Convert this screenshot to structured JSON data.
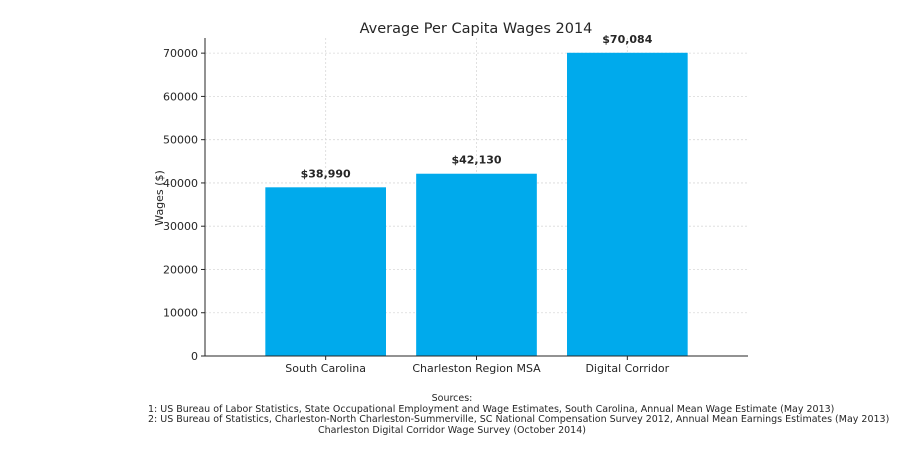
{
  "chart_data": {
    "type": "bar",
    "title": "Average Per Capita Wages 2014",
    "xlabel": "",
    "ylabel": "Wages ($)",
    "categories": [
      "South Carolina",
      "Charleston Region MSA",
      "Digital Corridor"
    ],
    "values": [
      38990,
      42130,
      70084
    ],
    "value_labels": [
      "$38,990",
      "$42,130",
      "$70,084"
    ],
    "ylim": [
      0,
      73500
    ],
    "yticks": [
      0,
      10000,
      20000,
      30000,
      40000,
      50000,
      60000,
      70000
    ],
    "ytick_labels": [
      "0",
      "10000",
      "20000",
      "30000",
      "40000",
      "50000",
      "60000",
      "70000"
    ],
    "grid": true,
    "bar_color": "#00aaec"
  },
  "sources": {
    "heading": "Sources:",
    "lines": [
      "1: US Bureau of Labor Statistics, State Occupational Employment and Wage Estimates, South Carolina, Annual Mean Wage Estimate (May 2013)",
      "2: US Bureau of Statistics, Charleston-North Charleston-Summerville, SC National Compensation Survey 2012, Annual Mean Earnings Estimates (May 2013)",
      "Charleston Digital Corridor Wage Survey (October 2014)"
    ]
  }
}
